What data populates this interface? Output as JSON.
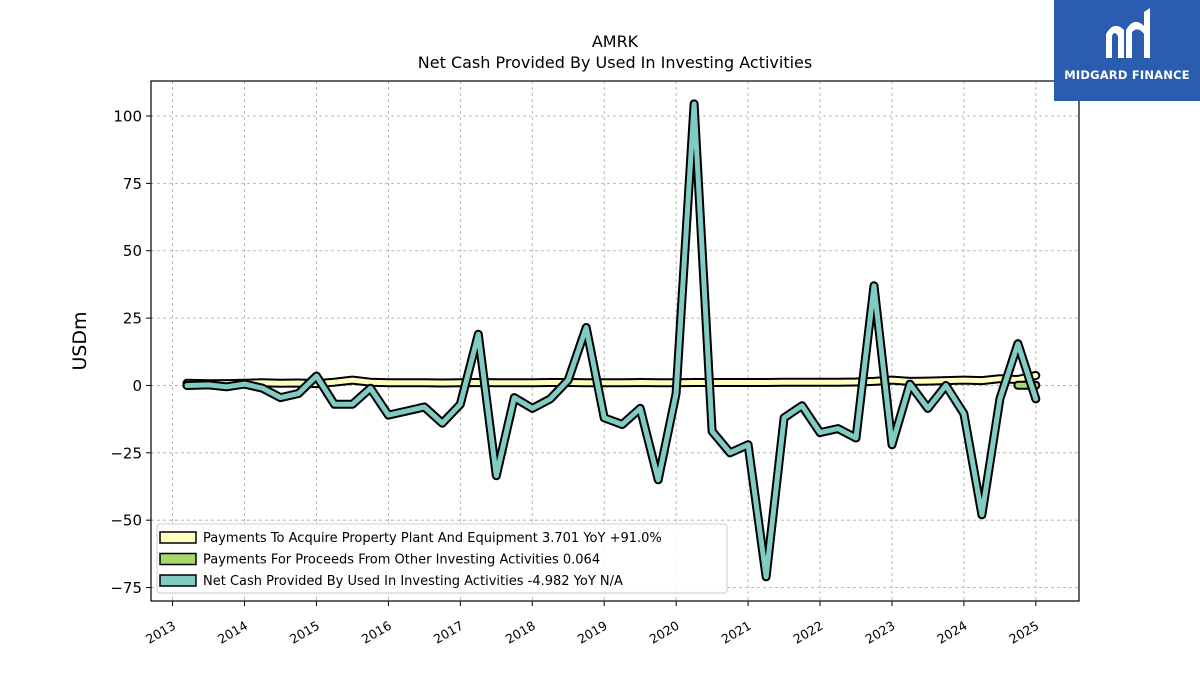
{
  "brand": {
    "name": "MIDGARD FINANCE",
    "logo_icon": "midgard-m-icon",
    "color": "#2a5db0"
  },
  "chart_data": {
    "type": "line",
    "title": "AMRK",
    "subtitle": "Net Cash Provided By Used In Investing Activities",
    "xlabel": "",
    "ylabel": "USDm",
    "xlim": [
      2012.7,
      2025.6
    ],
    "ylim": [
      -80,
      113
    ],
    "grid": true,
    "legend_position": "bottom-left",
    "x_ticks": [
      2013,
      2014,
      2015,
      2016,
      2017,
      2018,
      2019,
      2020,
      2021,
      2022,
      2023,
      2024,
      2025
    ],
    "y_ticks": [
      -75,
      -50,
      -25,
      0,
      25,
      50,
      75,
      100
    ],
    "y_tick_labels": [
      "−75",
      "−50",
      "−25",
      "0",
      "25",
      "50",
      "75",
      "100"
    ],
    "series": [
      {
        "name": "Payments To Acquire Property Plant And Equipment",
        "legend_label": "Payments To Acquire Property Plant And Equipment  3.701 YoY +91.0%",
        "color": "#ffffbf",
        "x": [
          2013.2,
          2013.5,
          2013.75,
          2014.0,
          2014.25,
          2014.5,
          2014.75,
          2015.0,
          2015.25,
          2015.5,
          2015.75,
          2016.0,
          2016.25,
          2016.5,
          2016.75,
          2017.0,
          2017.25,
          2017.5,
          2017.75,
          2018.0,
          2018.25,
          2018.5,
          2018.75,
          2019.0,
          2019.25,
          2019.5,
          2019.75,
          2020.0,
          2020.25,
          2020.5,
          2020.75,
          2021.0,
          2021.25,
          2021.5,
          2021.75,
          2022.0,
          2022.25,
          2022.5,
          2022.75,
          2023.0,
          2023.25,
          2023.5,
          2023.75,
          2024.0,
          2024.25,
          2024.5,
          2024.75,
          2025.0
        ],
        "values": [
          0.8,
          0.6,
          0.7,
          0.8,
          1.0,
          0.8,
          0.9,
          0.7,
          1.2,
          2.0,
          1.2,
          1.0,
          1.0,
          1.0,
          0.9,
          1.0,
          1.1,
          1.0,
          1.0,
          1.0,
          1.1,
          1.1,
          1.0,
          1.0,
          1.0,
          1.1,
          1.0,
          1.0,
          1.1,
          1.1,
          1.1,
          1.1,
          1.1,
          1.2,
          1.2,
          1.2,
          1.2,
          1.3,
          1.5,
          2.0,
          1.5,
          1.6,
          1.8,
          2.0,
          1.8,
          2.5,
          2.2,
          3.7
        ]
      },
      {
        "name": "Payments For Proceeds From Other Investing Activities",
        "legend_label": "Payments For Proceeds From Other Investing Activities  0.064",
        "color": "#a6d96a",
        "x": [
          2024.75,
          2025.0
        ],
        "values": [
          0.1,
          0.064
        ]
      },
      {
        "name": "Net Cash Provided By Used In Investing Activities",
        "legend_label": "Net Cash Provided By Used In Investing Activities  -4.982 YoY N/A",
        "color": "#80cbc4",
        "x": [
          2013.2,
          2013.5,
          2013.75,
          2014.0,
          2014.25,
          2014.5,
          2014.75,
          2015.0,
          2015.25,
          2015.5,
          2015.75,
          2016.0,
          2016.25,
          2016.5,
          2016.75,
          2017.0,
          2017.25,
          2017.5,
          2017.75,
          2018.0,
          2018.25,
          2018.5,
          2018.75,
          2019.0,
          2019.25,
          2019.5,
          2019.75,
          2020.0,
          2020.25,
          2020.5,
          2020.75,
          2021.0,
          2021.25,
          2021.5,
          2021.75,
          2022.0,
          2022.25,
          2022.5,
          2022.75,
          2023.0,
          2023.25,
          2023.5,
          2023.75,
          2024.0,
          2024.25,
          2024.5,
          2024.75,
          2025.0
        ],
        "values": [
          0,
          0.2,
          -0.5,
          0.5,
          -1.0,
          -4.5,
          -3.0,
          3.5,
          -7.0,
          -7.0,
          -1.0,
          -11.0,
          -9.5,
          -8.0,
          -14.0,
          -7.0,
          19.0,
          -33.5,
          -4.5,
          -8.5,
          -5.0,
          2.0,
          21.5,
          -12.0,
          -14.5,
          -8.5,
          -35.0,
          -3.0,
          104.5,
          -17.0,
          -25.0,
          -22.0,
          -71.0,
          -12.0,
          -7.5,
          -17.5,
          -16.0,
          -19.5,
          37.0,
          -22.0,
          0.5,
          -8.5,
          0.0,
          -10.5,
          -48.0,
          -5.0,
          15.5,
          -4.982
        ]
      }
    ]
  }
}
